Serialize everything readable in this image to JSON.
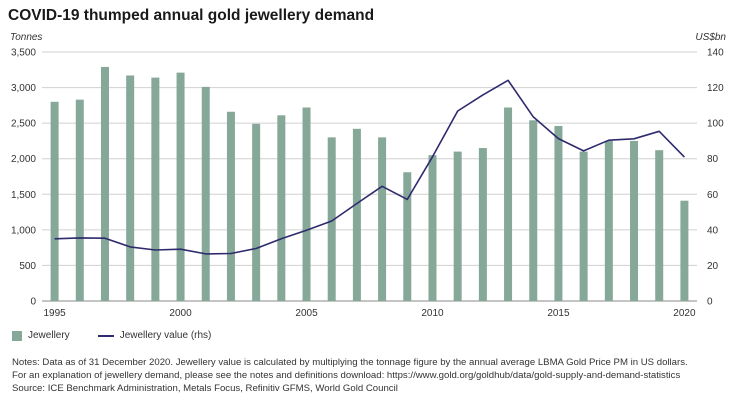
{
  "title": "COVID-19 thumped annual gold jewellery demand",
  "left_unit": "Tonnes",
  "right_unit": "US$bn",
  "legend": {
    "bars": "Jewellery",
    "line": "Jewellery value (rhs)"
  },
  "notes": [
    "Notes: Data as of 31 December 2020. Jewellery value is calculated by multiplying the tonnage figure by the annual average LBMA Gold Price PM in US dollars.",
    "For an explanation of jewellery demand, please see the notes and definitions download: https://www.gold.org/goldhub/data/gold-supply-and-demand-statistics",
    "Source: ICE Benchmark Administration, Metals Focus, Refinitiv GFMS, World Gold Council"
  ],
  "colors": {
    "bar": "#86a898",
    "line": "#2e2a6e",
    "grid": "#d0d0d0"
  },
  "chart_data": {
    "type": "bar",
    "title": "COVID-19 thumped annual gold jewellery demand",
    "x": [
      1995,
      1996,
      1997,
      1998,
      1999,
      2000,
      2001,
      2002,
      2003,
      2004,
      2005,
      2006,
      2007,
      2008,
      2009,
      2010,
      2011,
      2012,
      2013,
      2014,
      2015,
      2016,
      2017,
      2018,
      2019,
      2020
    ],
    "x_tick_labels": [
      "1995",
      "2000",
      "2005",
      "2010",
      "2015",
      "2020"
    ],
    "series": [
      {
        "name": "Jewellery",
        "type": "bar",
        "axis": "left",
        "values": [
          2800,
          2830,
          3290,
          3170,
          3140,
          3210,
          3010,
          2660,
          2490,
          2610,
          2720,
          2300,
          2420,
          2300,
          1810,
          2050,
          2100,
          2150,
          2720,
          2540,
          2460,
          2100,
          2250,
          2250,
          2120,
          1410
        ]
      },
      {
        "name": "Jewellery value (rhs)",
        "type": "line",
        "axis": "right",
        "values": [
          35,
          35.5,
          35.3,
          30.4,
          28.7,
          29.1,
          26.5,
          26.7,
          29.5,
          35,
          39.8,
          45,
          54.8,
          64.5,
          57.1,
          81.1,
          106.8,
          115.9,
          124.1,
          103.5,
          91.3,
          84.4,
          90.4,
          91.2,
          95.4,
          80.9
        ]
      }
    ],
    "ylabel": "Tonnes",
    "ylim": [
      0,
      3500
    ],
    "y_ticks": [
      "0",
      "500",
      "1,000",
      "1,500",
      "2,000",
      "2,500",
      "3,000",
      "3,500"
    ],
    "y2label": "US$bn",
    "y2lim": [
      0,
      140
    ],
    "y2_ticks": [
      "0",
      "20",
      "40",
      "60",
      "80",
      "100",
      "120",
      "140"
    ],
    "grid": true,
    "legend_position": "bottom-left"
  }
}
